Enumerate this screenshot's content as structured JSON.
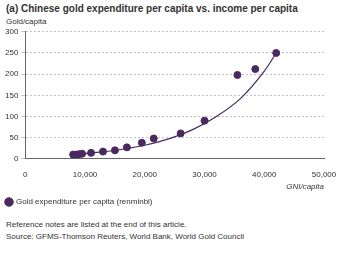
{
  "chart_data": {
    "type": "scatter",
    "title": "(a) Chinese gold expenditure per capita vs. income per capita",
    "y_label": "Gold/capita",
    "x_label": "GNI/capita",
    "annotations": [
      "Reference notes are listed at the end of this article.",
      "Source: GFMS-Thomson Reuters, World Bank, World Gold Council"
    ],
    "series": [
      {
        "name": "Gold expenditure per capita (renminbi)",
        "type": "scatter",
        "color": "#4a2a5e",
        "marker": "circle",
        "x": [
          8000,
          8500,
          9000,
          9500,
          11000,
          13000,
          15000,
          17000,
          19500,
          21500,
          26000,
          30000,
          35500,
          38500,
          42000
        ],
        "values": [
          10,
          10,
          11,
          12,
          14,
          17,
          20,
          27,
          38,
          48,
          60,
          90,
          198,
          212,
          250
        ]
      },
      {
        "type": "line",
        "color": "#4a2a5e",
        "line_style": "solid",
        "x": [
          8000,
          12000,
          16000,
          20000,
          24000,
          28000,
          32000,
          36000,
          40000,
          42000
        ],
        "values": [
          10,
          15,
          22,
          32,
          47,
          69,
          100,
          142,
          207,
          250
        ]
      }
    ],
    "xlim": [
      0,
      50000
    ],
    "xticks": [
      0,
      {
        "value": 10000,
        "label": "10,000"
      },
      {
        "value": 20000,
        "label": "20,000"
      },
      {
        "value": 30000,
        "label": "30,000"
      },
      {
        "value": 40000,
        "label": "40,000"
      },
      {
        "value": 50000,
        "label": "50,000"
      }
    ],
    "ylim": [
      0,
      300
    ],
    "yticks": [
      0,
      50,
      100,
      150,
      200,
      250,
      300
    ],
    "grid": true,
    "legend": "bottom-left"
  }
}
